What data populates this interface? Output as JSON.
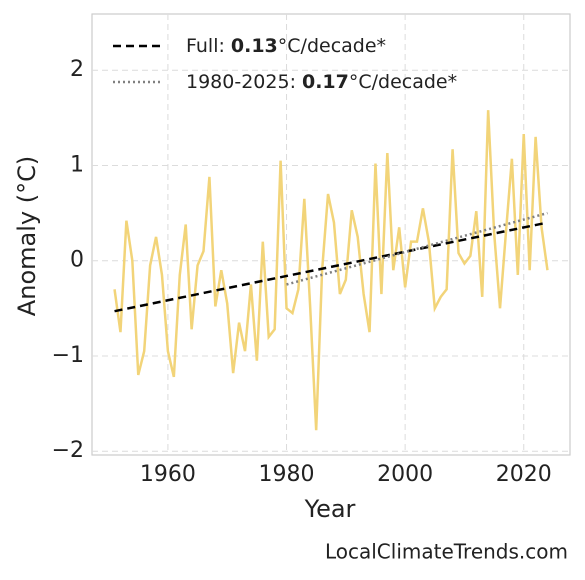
{
  "chart_data": {
    "type": "line",
    "xlabel": "Year",
    "ylabel": "Anomaly (°C)",
    "watermark": "LocalClimateTrends.com",
    "xlim": [
      1947.2,
      2027.8
    ],
    "ylim": [
      -2.04,
      2.59
    ],
    "xticks": [
      1960,
      1980,
      2000,
      2020
    ],
    "yticks": [
      {
        "value": -2,
        "label": "−2"
      },
      {
        "value": -1,
        "label": "−1"
      },
      0,
      1,
      2
    ],
    "grid": true,
    "legend": "upper left",
    "series": [
      {
        "name": "Anomaly",
        "color": "#f2d479",
        "x": [
          1951,
          1952,
          1953,
          1954,
          1955,
          1956,
          1957,
          1958,
          1959,
          1960,
          1961,
          1962,
          1963,
          1964,
          1965,
          1966,
          1967,
          1968,
          1969,
          1970,
          1971,
          1972,
          1973,
          1974,
          1975,
          1976,
          1977,
          1978,
          1979,
          1980,
          1981,
          1982,
          1983,
          1984,
          1985,
          1986,
          1987,
          1988,
          1989,
          1990,
          1991,
          1992,
          1993,
          1994,
          1995,
          1996,
          1997,
          1998,
          1999,
          2000,
          2001,
          2002,
          2003,
          2004,
          2005,
          2006,
          2007,
          2008,
          2009,
          2010,
          2011,
          2012,
          2013,
          2014,
          2015,
          2016,
          2017,
          2018,
          2019,
          2020,
          2021,
          2022,
          2023,
          2024
        ],
        "values": [
          -0.3,
          -0.75,
          0.42,
          0.0,
          -1.2,
          -0.95,
          -0.05,
          0.25,
          -0.15,
          -0.95,
          -1.22,
          -0.15,
          0.38,
          -0.72,
          -0.05,
          0.1,
          0.88,
          -0.48,
          -0.1,
          -0.45,
          -1.18,
          -0.65,
          -0.95,
          -0.25,
          -1.05,
          0.2,
          -0.8,
          -0.72,
          1.05,
          -0.5,
          -0.55,
          -0.3,
          0.65,
          -0.5,
          -1.78,
          -0.1,
          0.7,
          0.4,
          -0.35,
          -0.2,
          0.53,
          0.25,
          -0.35,
          -0.75,
          1.02,
          -0.35,
          1.13,
          -0.1,
          0.35,
          -0.28,
          0.2,
          0.2,
          0.55,
          0.2,
          -0.5,
          -0.38,
          -0.3,
          1.17,
          0.08,
          -0.03,
          0.05,
          0.52,
          -0.38,
          1.58,
          0.3,
          -0.5,
          0.3,
          1.07,
          -0.15,
          1.33,
          -0.1,
          1.3,
          0.35,
          -0.1
        ]
      },
      {
        "name": "Full:",
        "rate": 0.13,
        "unit": "°C/decade*",
        "color": "#000000",
        "dash": "dashed",
        "x": [
          1951,
          2024
        ],
        "values": [
          -0.53,
          0.4
        ]
      },
      {
        "name": "1980-2025:",
        "rate": 0.17,
        "unit": "°C/decade*",
        "color": "#808080",
        "dash": "dotted",
        "x": [
          1980,
          2024
        ],
        "values": [
          -0.25,
          0.5
        ]
      }
    ]
  }
}
